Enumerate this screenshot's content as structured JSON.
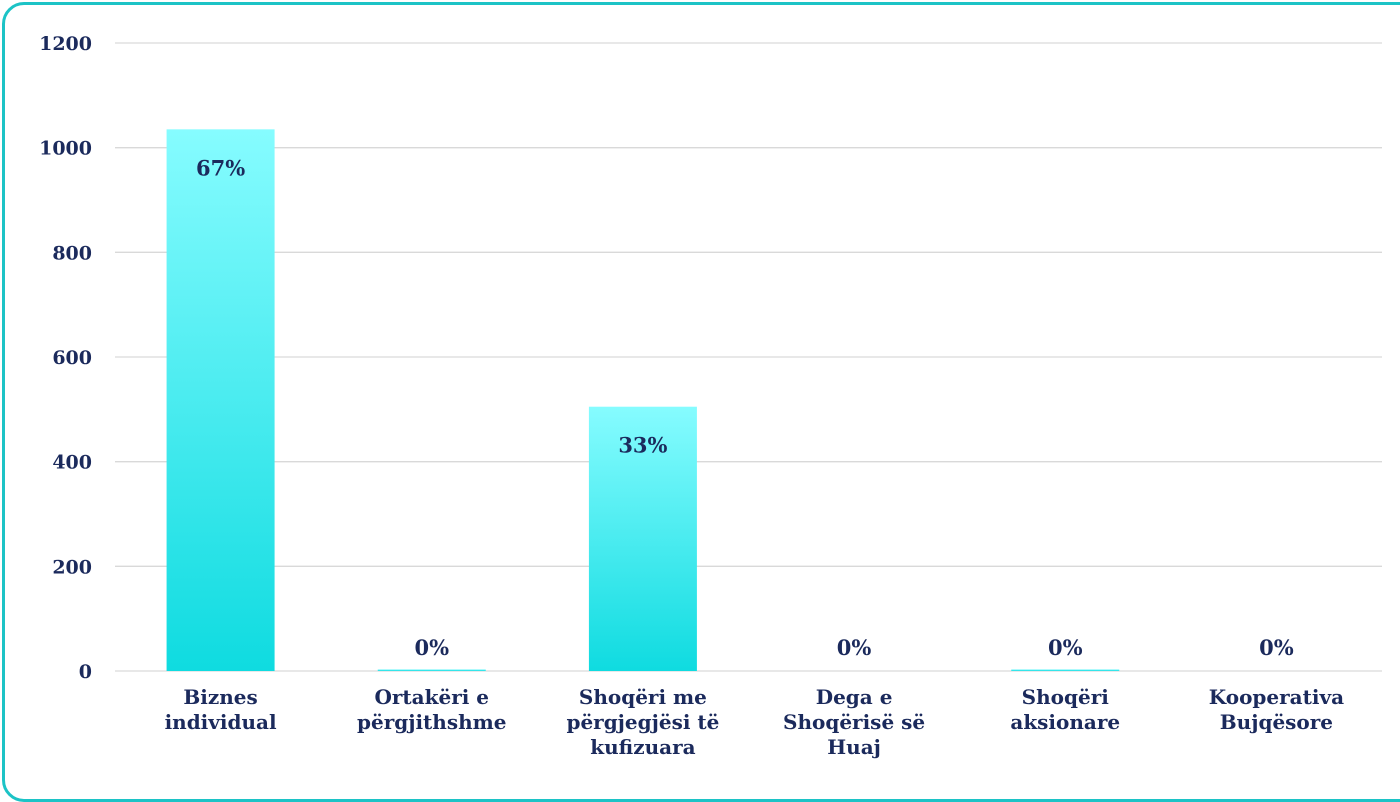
{
  "chart_data": {
    "type": "bar",
    "categories": [
      [
        "Biznes",
        "individual"
      ],
      [
        "Ortakëri e",
        "përgjithshme"
      ],
      [
        "Shoqëri me",
        "përgjegjësi të",
        "kufizuara"
      ],
      [
        "Dega e",
        "Shoqërisë së",
        "Huaj"
      ],
      [
        "Shoqëri",
        "aksionare"
      ],
      [
        "Kooperativa",
        "Bujqësore"
      ]
    ],
    "values": [
      1035,
      3,
      505,
      0,
      3,
      0
    ],
    "data_labels": [
      "67%",
      "0%",
      "33%",
      "0%",
      "0%",
      "0%"
    ],
    "yticks": [
      "0",
      "200",
      "400",
      "600",
      "800",
      "1000",
      "1200"
    ],
    "ylim": [
      0,
      1200
    ],
    "grid": true,
    "title": "",
    "xlabel": "",
    "ylabel": "",
    "colors": {
      "bar_top": "#86fcff",
      "bar_bottom": "#0fdbe0",
      "grid": "#d9d9d9",
      "text": "#1b2a5c",
      "border": "#1cc3c6"
    }
  }
}
